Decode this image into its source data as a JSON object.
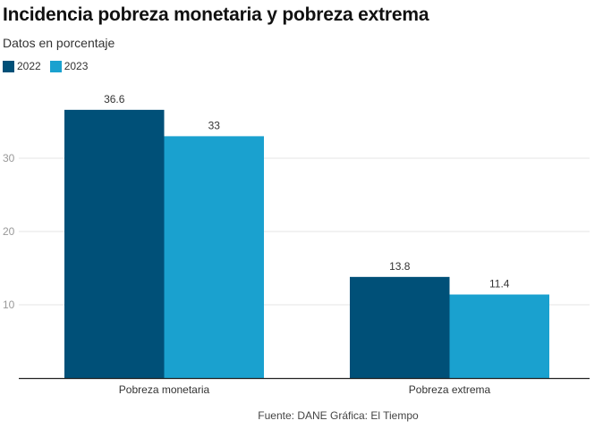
{
  "chart_data": {
    "type": "bar",
    "title": "Incidencia pobreza monetaria y pobreza extrema",
    "subtitle": "Datos en porcentaje",
    "categories": [
      "Pobreza monetaria",
      "Pobreza extrema"
    ],
    "series": [
      {
        "name": "2022",
        "color": "#005078",
        "values": [
          36.6,
          13.8
        ],
        "labels": [
          "36.6",
          "13.8"
        ]
      },
      {
        "name": "2023",
        "color": "#1aa1cf",
        "values": [
          33,
          11.4
        ],
        "labels": [
          "33",
          "11.4"
        ]
      }
    ],
    "yticks": [
      10,
      20,
      30
    ],
    "ytick_labels": [
      "10",
      "20",
      "30"
    ],
    "ylim": [
      0,
      40
    ],
    "grid": true,
    "legend_position": "top-left",
    "xlabel": "",
    "ylabel": "",
    "source": "Fuente: DANE Gráfica: El Tiempo"
  }
}
